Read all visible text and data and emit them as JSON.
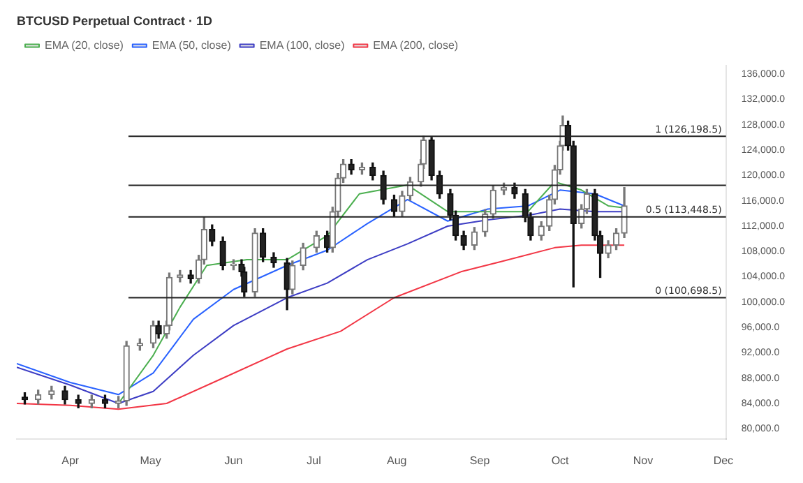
{
  "chart_data": {
    "type": "candlestick",
    "title": "BTCUSD Perpetual Contract · 1D",
    "x": [
      "--03-15",
      "--03-20",
      "--03-25",
      "--03-30",
      "--04-04",
      "--04-09",
      "--04-14",
      "--04-19",
      "--04-22",
      "--04-27",
      "--05-02",
      "--05-04",
      "--05-07",
      "--05-08",
      "--05-12",
      "--05-16",
      "--05-19",
      "--05-21",
      "--05-24",
      "--05-28",
      "--06-01",
      "--06-04",
      "--06-05",
      "--06-09",
      "--06-12",
      "--06-16",
      "--06-21",
      "--06-23",
      "--06-27",
      "--07-02",
      "--07-06",
      "--07-08",
      "--07-10",
      "--07-12",
      "--07-15",
      "--07-19",
      "--07-23",
      "--07-27",
      "--07-31",
      "--08-03",
      "--08-06",
      "--08-10",
      "--08-11",
      "--08-14",
      "--08-17",
      "--08-21",
      "--08-23",
      "--08-26",
      "--08-30",
      "--09-03",
      "--09-06",
      "--09-10",
      "--09-14",
      "--09-18",
      "--09-20",
      "--09-24",
      "--09-27",
      "--09-29",
      "--10-01",
      "--10-02",
      "--10-04",
      "--10-06",
      "--10-09",
      "--10-11",
      "--10-14",
      "--10-16",
      "--10-19",
      "--10-22",
      "--10-25"
    ],
    "ohlc": [
      [
        85000,
        85700,
        83900,
        84600
      ],
      [
        84600,
        86100,
        83900,
        85400
      ],
      [
        85400,
        86700,
        84700,
        86000
      ],
      [
        86000,
        86700,
        83900,
        84600
      ],
      [
        84600,
        85300,
        83300,
        84000
      ],
      [
        84000,
        85300,
        83300,
        84600
      ],
      [
        84600,
        85300,
        83300,
        84000
      ],
      [
        84000,
        85100,
        83300,
        84400
      ],
      [
        84400,
        93800,
        83700,
        93100
      ],
      [
        93100,
        94200,
        92400,
        93500
      ],
      [
        93500,
        97000,
        92800,
        96300
      ],
      [
        96300,
        97000,
        94300,
        95000
      ],
      [
        95000,
        97000,
        94300,
        96300
      ],
      [
        96300,
        104600,
        95600,
        103900
      ],
      [
        103900,
        105000,
        103200,
        104300
      ],
      [
        104300,
        105000,
        103000,
        103700
      ],
      [
        103700,
        107400,
        103000,
        106700
      ],
      [
        106700,
        113400,
        106000,
        111500
      ],
      [
        111500,
        112200,
        108900,
        109600
      ],
      [
        109600,
        110300,
        105100,
        105800
      ],
      [
        105800,
        106700,
        105100,
        106000
      ],
      [
        106000,
        106700,
        104100,
        104800
      ],
      [
        104800,
        105500,
        100900,
        101600
      ],
      [
        101600,
        111600,
        100900,
        110900
      ],
      [
        110900,
        111600,
        106400,
        107100
      ],
      [
        107100,
        107800,
        105500,
        106200
      ],
      [
        106200,
        106900,
        98800,
        102000
      ],
      [
        102000,
        106500,
        101300,
        105800
      ],
      [
        105800,
        109300,
        105100,
        108600
      ],
      [
        108600,
        111200,
        107900,
        110500
      ],
      [
        110500,
        111200,
        107900,
        108600
      ],
      [
        108600,
        115000,
        107900,
        114300
      ],
      [
        114300,
        120300,
        113600,
        119600
      ],
      [
        119600,
        122500,
        118900,
        121800
      ],
      [
        121800,
        122500,
        120200,
        120900
      ],
      [
        120900,
        122000,
        120200,
        121300
      ],
      [
        121300,
        122000,
        119300,
        120000
      ],
      [
        120000,
        120700,
        115500,
        116200
      ],
      [
        116200,
        116900,
        113600,
        114300
      ],
      [
        114300,
        117500,
        113600,
        116800
      ],
      [
        116800,
        119700,
        116100,
        119000
      ],
      [
        119000,
        122500,
        118300,
        121800
      ],
      [
        121800,
        126200,
        121100,
        125600
      ],
      [
        125600,
        126000,
        119300,
        120000
      ],
      [
        120000,
        120700,
        116400,
        117100
      ],
      [
        117100,
        117800,
        113000,
        113700
      ],
      [
        113700,
        114400,
        109800,
        110500
      ],
      [
        110500,
        111200,
        108300,
        109000
      ],
      [
        109000,
        111800,
        108300,
        111100
      ],
      [
        111100,
        114600,
        110400,
        113900
      ],
      [
        113900,
        118400,
        113200,
        117700
      ],
      [
        117700,
        118800,
        117000,
        118100
      ],
      [
        118100,
        118800,
        116400,
        117100
      ],
      [
        117100,
        117800,
        112700,
        113400
      ],
      [
        113400,
        114100,
        109800,
        110500
      ],
      [
        110500,
        112700,
        109800,
        112000
      ],
      [
        112000,
        116900,
        111300,
        116200
      ],
      [
        116200,
        121600,
        115500,
        120900
      ],
      [
        120900,
        125400,
        120200,
        124700
      ],
      [
        124700,
        129400,
        124000,
        127900
      ],
      [
        127900,
        128600,
        124000,
        124700
      ],
      [
        124700,
        125400,
        102400,
        112400
      ],
      [
        112400,
        115400,
        111700,
        114700
      ],
      [
        114700,
        117800,
        114000,
        117100
      ],
      [
        117100,
        117800,
        109800,
        110500
      ],
      [
        110500,
        111200,
        103900,
        107700
      ],
      [
        107700,
        109700,
        107000,
        109000
      ],
      [
        109000,
        111600,
        108300,
        110900
      ],
      [
        110900,
        118100,
        110200,
        115200
      ]
    ],
    "series": [
      {
        "name": "EMA (20, close)",
        "type": "line",
        "color": "#4caf50",
        "x": [
          "--04-19",
          "--05-02",
          "--05-12",
          "--05-22",
          "--06-06",
          "--06-21",
          "--07-06",
          "--07-18",
          "--08-05",
          "--08-20",
          "--09-04",
          "--09-19",
          "--09-29",
          "--10-09",
          "--10-19",
          "--10-25"
        ],
        "values": [
          84000,
          91600,
          99200,
          105800,
          106700,
          106700,
          110500,
          117100,
          118500,
          114300,
          114300,
          114300,
          119000,
          117700,
          115200,
          114900
        ]
      },
      {
        "name": "EMA (50, close)",
        "type": "line",
        "color": "#2962ff",
        "x": [
          "--03-12",
          "--04-01",
          "--04-19",
          "--05-02",
          "--05-17",
          "--06-01",
          "--06-21",
          "--07-06",
          "--07-21",
          "--08-05",
          "--08-20",
          "--09-04",
          "--09-19",
          "--10-01",
          "--10-14",
          "--10-25"
        ],
        "values": [
          90300,
          87300,
          85400,
          88800,
          97300,
          102000,
          105800,
          108200,
          112400,
          116200,
          112800,
          114700,
          115200,
          117700,
          117100,
          115200
        ]
      },
      {
        "name": "EMA (100, close)",
        "type": "line",
        "color": "#3d3dc4",
        "x": [
          "--03-12",
          "--04-01",
          "--04-19",
          "--05-02",
          "--05-17",
          "--06-01",
          "--06-21",
          "--07-06",
          "--07-21",
          "--08-05",
          "--08-20",
          "--09-04",
          "--09-19",
          "--10-01",
          "--10-14",
          "--10-25"
        ],
        "values": [
          89700,
          86900,
          84000,
          85900,
          91600,
          96300,
          100700,
          103000,
          106700,
          109200,
          112000,
          113000,
          113700,
          114700,
          114300,
          114300
        ]
      },
      {
        "name": "EMA (200, close)",
        "type": "line",
        "color": "#f23645",
        "x": [
          "--03-12",
          "--04-01",
          "--04-19",
          "--05-07",
          "--05-27",
          "--06-21",
          "--07-11",
          "--07-31",
          "--08-25",
          "--09-09",
          "--09-29",
          "--10-09",
          "--10-25"
        ],
        "values": [
          84000,
          83700,
          83100,
          84000,
          87800,
          92600,
          95400,
          100700,
          104800,
          106400,
          108600,
          109000,
          109000
        ]
      }
    ],
    "ref_lines": [
      {
        "axis": "y",
        "value": 126198.5,
        "label": "1 (126,198.5)"
      },
      {
        "axis": "y",
        "value": 113448.5,
        "label": "0.5 (113,448.5)"
      },
      {
        "axis": "y",
        "value": 100698.5,
        "label": "0 (100,698.5)"
      },
      {
        "axis": "y",
        "value": 118450
      }
    ],
    "xlim": [
      "--03-12",
      "--12-02"
    ],
    "xticks": [
      {
        "value": "--04-01",
        "label": "Apr"
      },
      {
        "value": "--05-01",
        "label": "May"
      },
      {
        "value": "--06-01",
        "label": "Jun"
      },
      {
        "value": "--07-01",
        "label": "Jul"
      },
      {
        "value": "--08-01",
        "label": "Aug"
      },
      {
        "value": "--09-01",
        "label": "Sep"
      },
      {
        "value": "--10-01",
        "label": "Oct"
      },
      {
        "value": "--11-01",
        "label": "Nov"
      },
      {
        "value": "--12-01",
        "label": "Dec"
      }
    ],
    "ylim": [
      78400,
      137400
    ],
    "yticks": [
      {
        "value": 80000,
        "label": "80,000.0"
      },
      {
        "value": 84000,
        "label": "84,000.0"
      },
      {
        "value": 88000,
        "label": "88,000.0"
      },
      {
        "value": 92000,
        "label": "92,000.0"
      },
      {
        "value": 96000,
        "label": "96,000.0"
      },
      {
        "value": 100000,
        "label": "100,000.0"
      },
      {
        "value": 104000,
        "label": "104,000.0"
      },
      {
        "value": 108000,
        "label": "108,000.0"
      },
      {
        "value": 112000,
        "label": "112,000.0"
      },
      {
        "value": 116000,
        "label": "116,000.0"
      },
      {
        "value": 120000,
        "label": "120,000.0"
      },
      {
        "value": 124000,
        "label": "124,000.0"
      },
      {
        "value": 128000,
        "label": "128,000.0"
      },
      {
        "value": 132000,
        "label": "132,000.0"
      },
      {
        "value": 136000,
        "label": "136,000.0"
      }
    ],
    "grid": false,
    "legend": "top left",
    "line_style": "solid",
    "marker": "none"
  }
}
